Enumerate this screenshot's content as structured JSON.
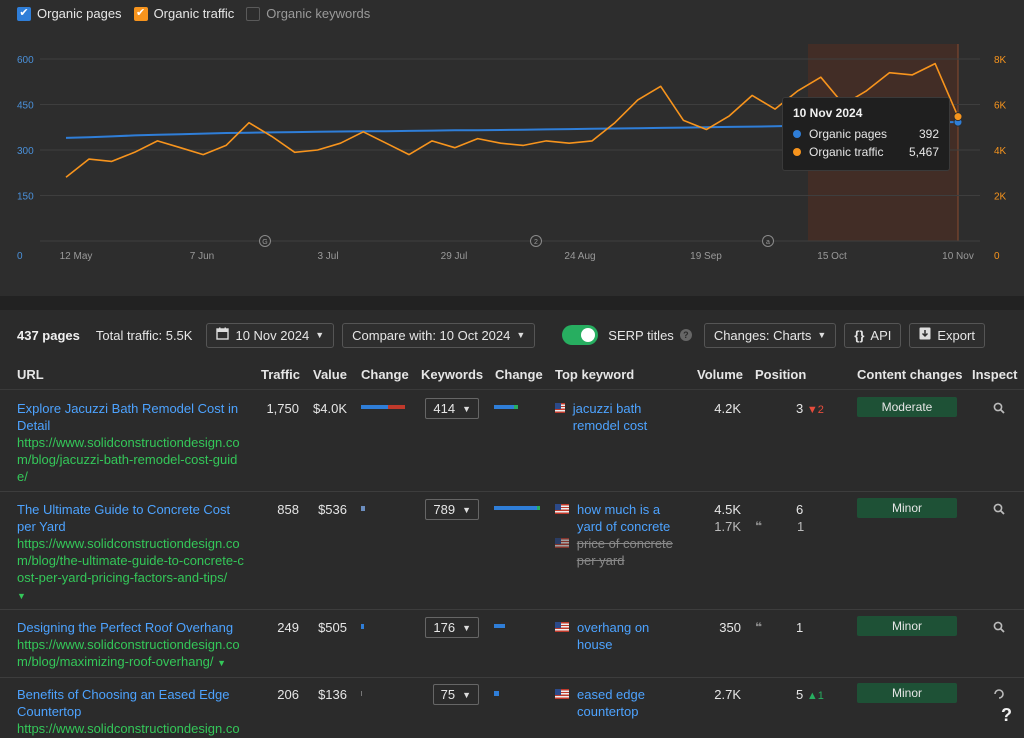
{
  "legend": [
    {
      "label": "Organic pages",
      "checked": true,
      "color": "#2f7ed8"
    },
    {
      "label": "Organic traffic",
      "checked": true,
      "color": "#f7941d"
    },
    {
      "label": "Organic keywords",
      "checked": false,
      "color": "#5a5a5a"
    }
  ],
  "chart_data": {
    "type": "line",
    "x_ticks": [
      "12 May",
      "7 Jun",
      "3 Jul",
      "29 Jul",
      "24 Aug",
      "19 Sep",
      "15 Oct",
      "10 Nov"
    ],
    "y_left_ticks": [
      "0",
      "150",
      "300",
      "450",
      "600"
    ],
    "y_right_ticks": [
      "0",
      "2K",
      "4K",
      "6K",
      "8K"
    ],
    "y_left_range": [
      0,
      600
    ],
    "y_right_range": [
      0,
      8000
    ],
    "annotations": [
      "G",
      "2",
      "a"
    ],
    "series": [
      {
        "name": "Organic pages",
        "axis": "left",
        "color": "#2f7ed8",
        "values": [
          340,
          342,
          345,
          348,
          350,
          352,
          354,
          356,
          357,
          358,
          359,
          360,
          361,
          362,
          362,
          363,
          364,
          365,
          365,
          366,
          367,
          368,
          369,
          370,
          371,
          372,
          373,
          374,
          375,
          376,
          377,
          378,
          380,
          382,
          384,
          386,
          388,
          390,
          392,
          392
        ]
      },
      {
        "name": "Organic traffic",
        "axis": "right",
        "color": "#f7941d",
        "values": [
          2800,
          3600,
          3500,
          3900,
          4400,
          4100,
          3800,
          4200,
          5200,
          4600,
          3900,
          4000,
          4300,
          4800,
          4300,
          3800,
          4400,
          4100,
          4500,
          4300,
          4200,
          4400,
          4300,
          4400,
          5200,
          6200,
          6800,
          5300,
          4900,
          5500,
          6400,
          5800,
          6600,
          7200,
          6000,
          6600,
          7400,
          7300,
          7800,
          5467
        ]
      }
    ],
    "tooltip": {
      "date": "10 Nov 2024",
      "pages": "392",
      "traffic": "5,467"
    }
  },
  "toolbar": {
    "pages": "437 pages",
    "total": "Total traffic: 5.5K",
    "date": "10 Nov 2024",
    "compare": "Compare with: 10 Oct 2024",
    "serp": "SERP titles",
    "changes": "Changes: Charts",
    "api": "API",
    "export": "Export"
  },
  "headers": {
    "url": "URL",
    "traffic": "Traffic",
    "value": "Value",
    "change": "Change",
    "keywords": "Keywords",
    "change2": "Change",
    "top_keyword": "Top keyword",
    "volume": "Volume",
    "position": "Position",
    "content": "Content changes",
    "inspect": "Inspect"
  },
  "rows": [
    {
      "title": "Explore Jacuzzi Bath Remodel Cost in Detail",
      "url": "https://www.solidconstructiondesign.com/blog/jacuzzi-bath-remodel-cost-guide/",
      "traffic": "1,750",
      "value": "$4.0K",
      "keywords": "414",
      "kw1": "jacuzzi bath remodel cost",
      "vol1": "4.2K",
      "pos1": "3",
      "delta": "2",
      "content": "Moderate"
    },
    {
      "title": "The Ultimate Guide to Concrete Cost per Yard",
      "url": "https://www.solidconstructiondesign.com/blog/the-ultimate-guide-to-concrete-cost-per-yard-pricing-factors-and-tips/",
      "traffic": "858",
      "value": "$536",
      "keywords": "789",
      "kw1": "how much is a yard of concrete",
      "vol1": "4.5K",
      "pos1": "6",
      "kw2": "price of concrete per yard",
      "vol2": "1.7K",
      "pos2": "1",
      "content": "Minor"
    },
    {
      "title": "Designing the Perfect Roof Overhang",
      "url": "https://www.solidconstructiondesign.com/blog/maximizing-roof-overhang/",
      "traffic": "249",
      "value": "$505",
      "keywords": "176",
      "kw1": "overhang on house",
      "vol1": "350",
      "pos1": "1",
      "content": "Minor"
    },
    {
      "title": "Benefits of Choosing an Eased Edge Countertop",
      "url": "https://www.solidconstructiondesign.co",
      "traffic": "206",
      "value": "$136",
      "keywords": "75",
      "kw1": "eased edge countertop",
      "vol1": "2.7K",
      "pos1": "5",
      "delta": "1",
      "content": "Minor"
    }
  ],
  "help": "?"
}
